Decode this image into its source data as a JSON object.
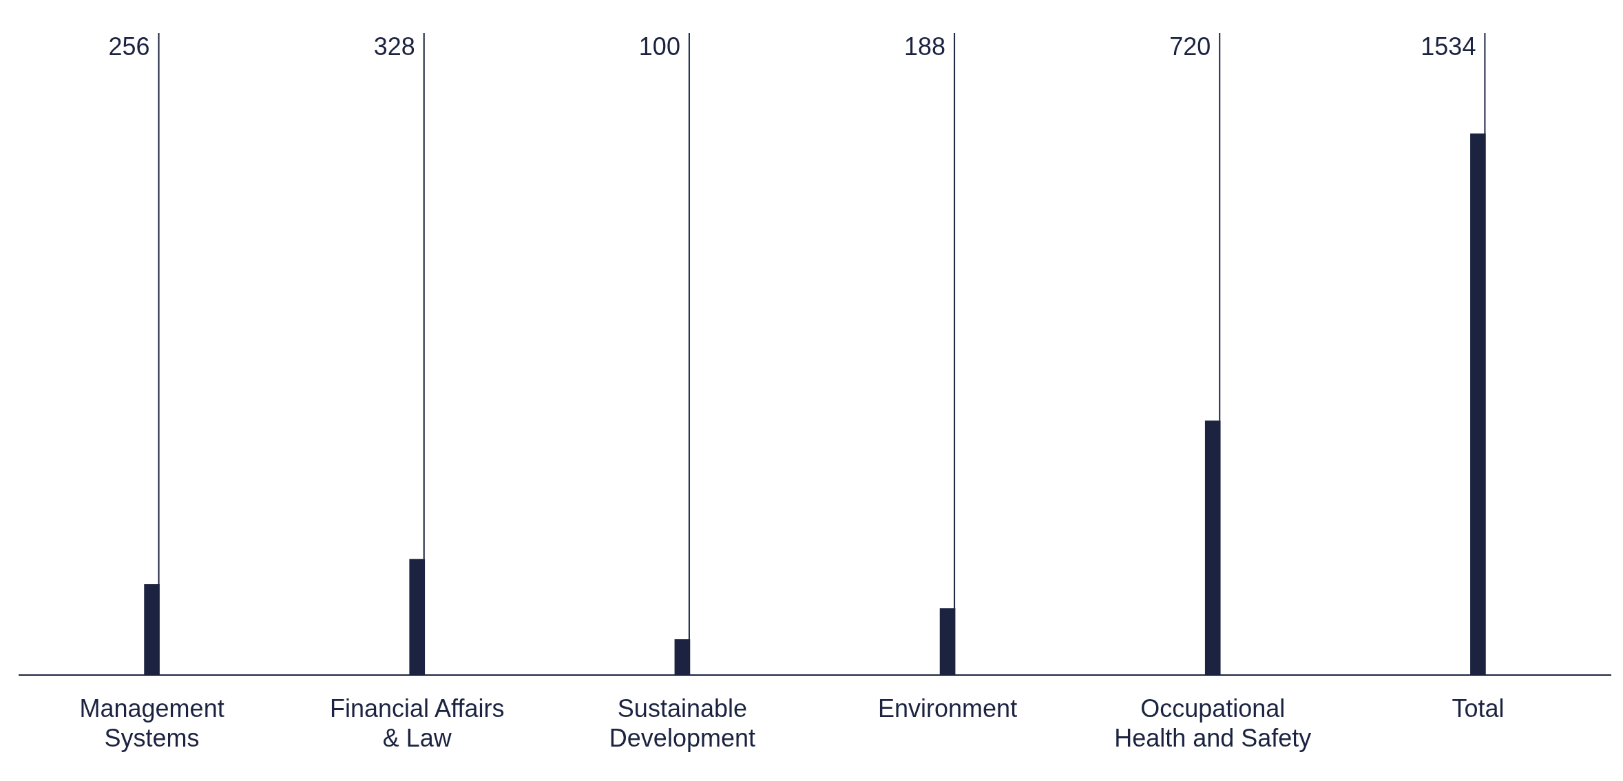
{
  "chart_data": {
    "type": "bar",
    "categories": [
      "Management Systems",
      "Financial Affairs & Law",
      "Sustainable Development",
      "Environment",
      "Occupational Health and Safety",
      "Total"
    ],
    "values": [
      256,
      328,
      100,
      188,
      720,
      1534
    ],
    "color": "#1b2340",
    "data_labels": true,
    "grid": "x",
    "legend": false
  }
}
